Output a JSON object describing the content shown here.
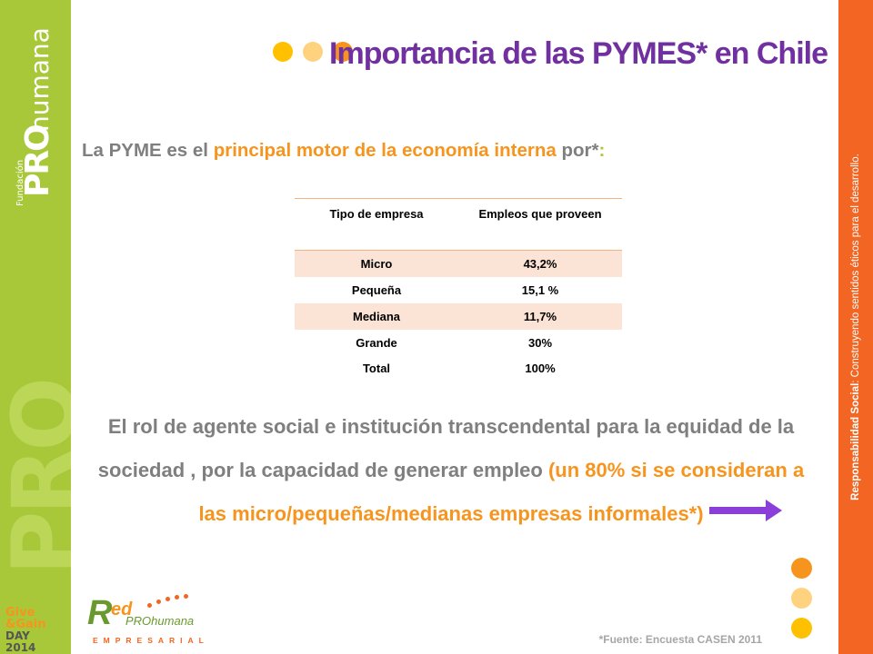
{
  "slide": {
    "title": "Importancia de las PYMES* en Chile",
    "subtitle_parts": [
      "La PYME es el ",
      "principal motor de la economía interna",
      " por*",
      ":"
    ],
    "table": {
      "headers": [
        "Tipo de empresa",
        "Empleos que proveen"
      ],
      "rows": [
        {
          "tipo": "Micro",
          "empleos": "43,2%"
        },
        {
          "tipo": "Pequeña",
          "empleos": "15,1 %"
        },
        {
          "tipo": "Mediana",
          "empleos": "11,7%"
        },
        {
          "tipo": "Grande",
          "empleos": "30%"
        },
        {
          "tipo": "Total",
          "empleos": "100%"
        }
      ]
    },
    "paragraph_gray": "El rol de agente social e institución transcendental para la equidad de la sociedad , por la capacidad de generar empleo ",
    "paragraph_orange": "(un 80% si se consideran a las micro/pequeñas/medianas empresas informales*)",
    "footnote": "*Fuente: Encuesta CASEN 2011"
  },
  "branding": {
    "logo_fundacion": "Fundación",
    "logo_pro": "PRO",
    "logo_humana": "humana",
    "vertical_tagline_bold": "Responsabilidad Social",
    "vertical_tagline_rest": ": Construyendo sentidos éticos para el desarrollo.",
    "give_gain_1": "Give",
    "give_gain_2": "&Gain",
    "give_gain_3": "DAY 2014",
    "red_r": "R",
    "red_ed": "ed",
    "red_prohumana": "PROhumana",
    "red_empresarial": "EMPRESARIAL"
  },
  "colors": {
    "purple": "#7030a0",
    "orange": "#f7941d",
    "green_band": "#a8c83a",
    "orange_band": "#f26522",
    "dot_yellow": "#ffc000",
    "dot_light": "#ffd27f",
    "dot_orange": "#f7941d",
    "arrow": "#8b3fd9"
  }
}
